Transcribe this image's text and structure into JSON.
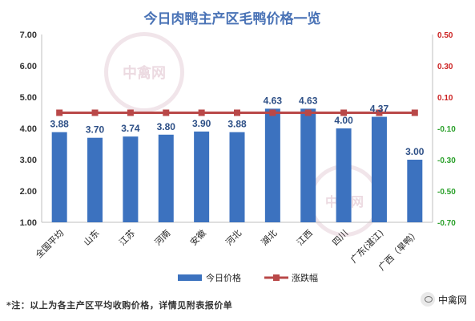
{
  "chart_data": {
    "type": "bar",
    "title": "今日肉鸭主产区毛鸭价格一览",
    "categories": [
      "全国平均",
      "山东",
      "江苏",
      "河南",
      "安徽",
      "河北",
      "湖北",
      "江西",
      "四川",
      "广东(湛江)",
      "广西（旱鸭）"
    ],
    "series": [
      {
        "name": "今日价格",
        "axis": "left",
        "values": [
          3.88,
          3.7,
          3.74,
          3.8,
          3.9,
          3.88,
          4.63,
          4.63,
          4.0,
          4.37,
          3.0
        ],
        "data_labels": [
          "3.88",
          "3.70",
          "3.74",
          "3.80",
          "3.90",
          "3.88",
          "4.63",
          "4.63",
          "4.00",
          "4.37",
          "3.00"
        ]
      },
      {
        "name": "涨跌幅",
        "axis": "right",
        "type": "line",
        "values": [
          0,
          0,
          0,
          0,
          0,
          0,
          0,
          0,
          0,
          0,
          0
        ]
      }
    ],
    "y_left": {
      "min": 1.0,
      "max": 7.0,
      "ticks": [
        "1.00",
        "2.00",
        "3.00",
        "4.00",
        "5.00",
        "6.00",
        "7.00"
      ]
    },
    "y_right": {
      "min": -0.7,
      "max": 0.5,
      "ticks": [
        {
          "label": "0.50",
          "color": "#cc2222"
        },
        {
          "label": "0.30",
          "color": "#cc2222"
        },
        {
          "label": "0.10",
          "color": "#cc2222"
        },
        {
          "label": "-0.10",
          "color": "#2aa02a"
        },
        {
          "label": "-0.30",
          "color": "#2aa02a"
        },
        {
          "label": "-0.50",
          "color": "#2aa02a"
        },
        {
          "label": "-0.70",
          "color": "#2aa02a"
        }
      ]
    },
    "grid": false,
    "legend": {
      "position": "bottom"
    },
    "colors": {
      "bar": "#3c72bf",
      "line": "#b94848",
      "title": "#4a73b6"
    }
  },
  "watermark": "中禽网",
  "footnote": "*注：以上为各主产区平均收购价格，详情见附表报价单",
  "brand": "中禽网"
}
